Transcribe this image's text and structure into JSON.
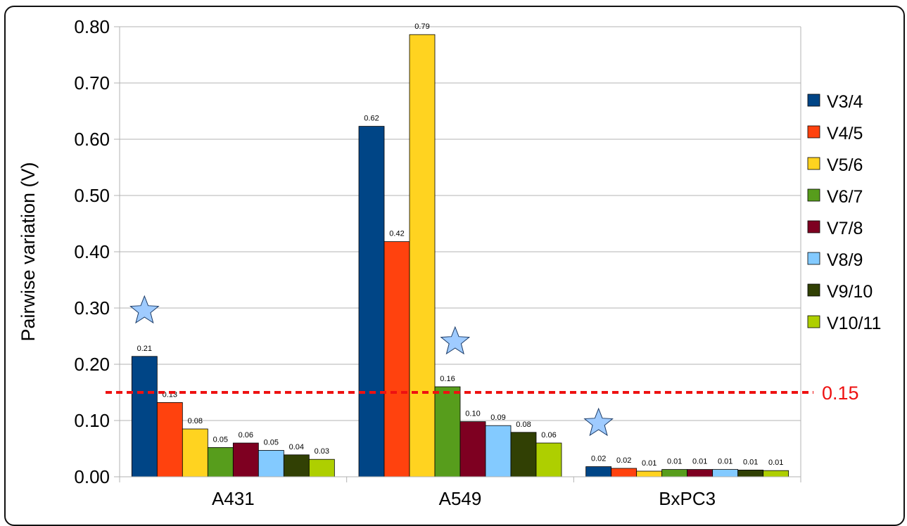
{
  "chart_data": {
    "type": "bar",
    "ylabel": "Pairwise variation (V)",
    "ylim": [
      0,
      0.8
    ],
    "yticks": [
      "0.00",
      "0.10",
      "0.20",
      "0.30",
      "0.40",
      "0.50",
      "0.60",
      "0.70",
      "0.80"
    ],
    "grid": true,
    "legend_position": "right",
    "categories": [
      "A431",
      "A549",
      "BxPC3"
    ],
    "series": [
      {
        "name": "V3/4",
        "color": "#004586",
        "values": [
          0.214,
          0.623,
          0.018
        ],
        "labels": [
          "0.21",
          "0.62",
          "0.02"
        ]
      },
      {
        "name": "V4/5",
        "color": "#ff420e",
        "values": [
          0.132,
          0.418,
          0.015
        ],
        "labels": [
          "0.13",
          "0.42",
          "0.02"
        ]
      },
      {
        "name": "V5/6",
        "color": "#ffd320",
        "values": [
          0.085,
          0.786,
          0.01
        ],
        "labels": [
          "0.08",
          "0.79",
          "0.01"
        ]
      },
      {
        "name": "V6/7",
        "color": "#579d1c",
        "values": [
          0.052,
          0.16,
          0.013
        ],
        "labels": [
          "0.05",
          "0.16",
          "0.01"
        ]
      },
      {
        "name": "V7/8",
        "color": "#7e0021",
        "values": [
          0.06,
          0.098,
          0.013
        ],
        "labels": [
          "0.06",
          "0.10",
          "0.01"
        ]
      },
      {
        "name": "V8/9",
        "color": "#83caff",
        "values": [
          0.047,
          0.091,
          0.013
        ],
        "labels": [
          "0.05",
          "0.09",
          "0.01"
        ]
      },
      {
        "name": "V9/10",
        "color": "#314004",
        "values": [
          0.039,
          0.079,
          0.012
        ],
        "labels": [
          "0.04",
          "0.08",
          "0.01"
        ]
      },
      {
        "name": "V10/11",
        "color": "#aecf00",
        "values": [
          0.031,
          0.06,
          0.011
        ],
        "labels": [
          "0.03",
          "0.06",
          "0.01"
        ]
      }
    ],
    "threshold": {
      "value": 0.15,
      "label": "0.15",
      "color": "#ee1111"
    },
    "star_markers": [
      {
        "category": "A431",
        "value": 0.295
      },
      {
        "category": "A549",
        "value": 0.24
      },
      {
        "category": "BxPC3",
        "value": 0.095
      }
    ],
    "star_color": "#9fcbff"
  }
}
